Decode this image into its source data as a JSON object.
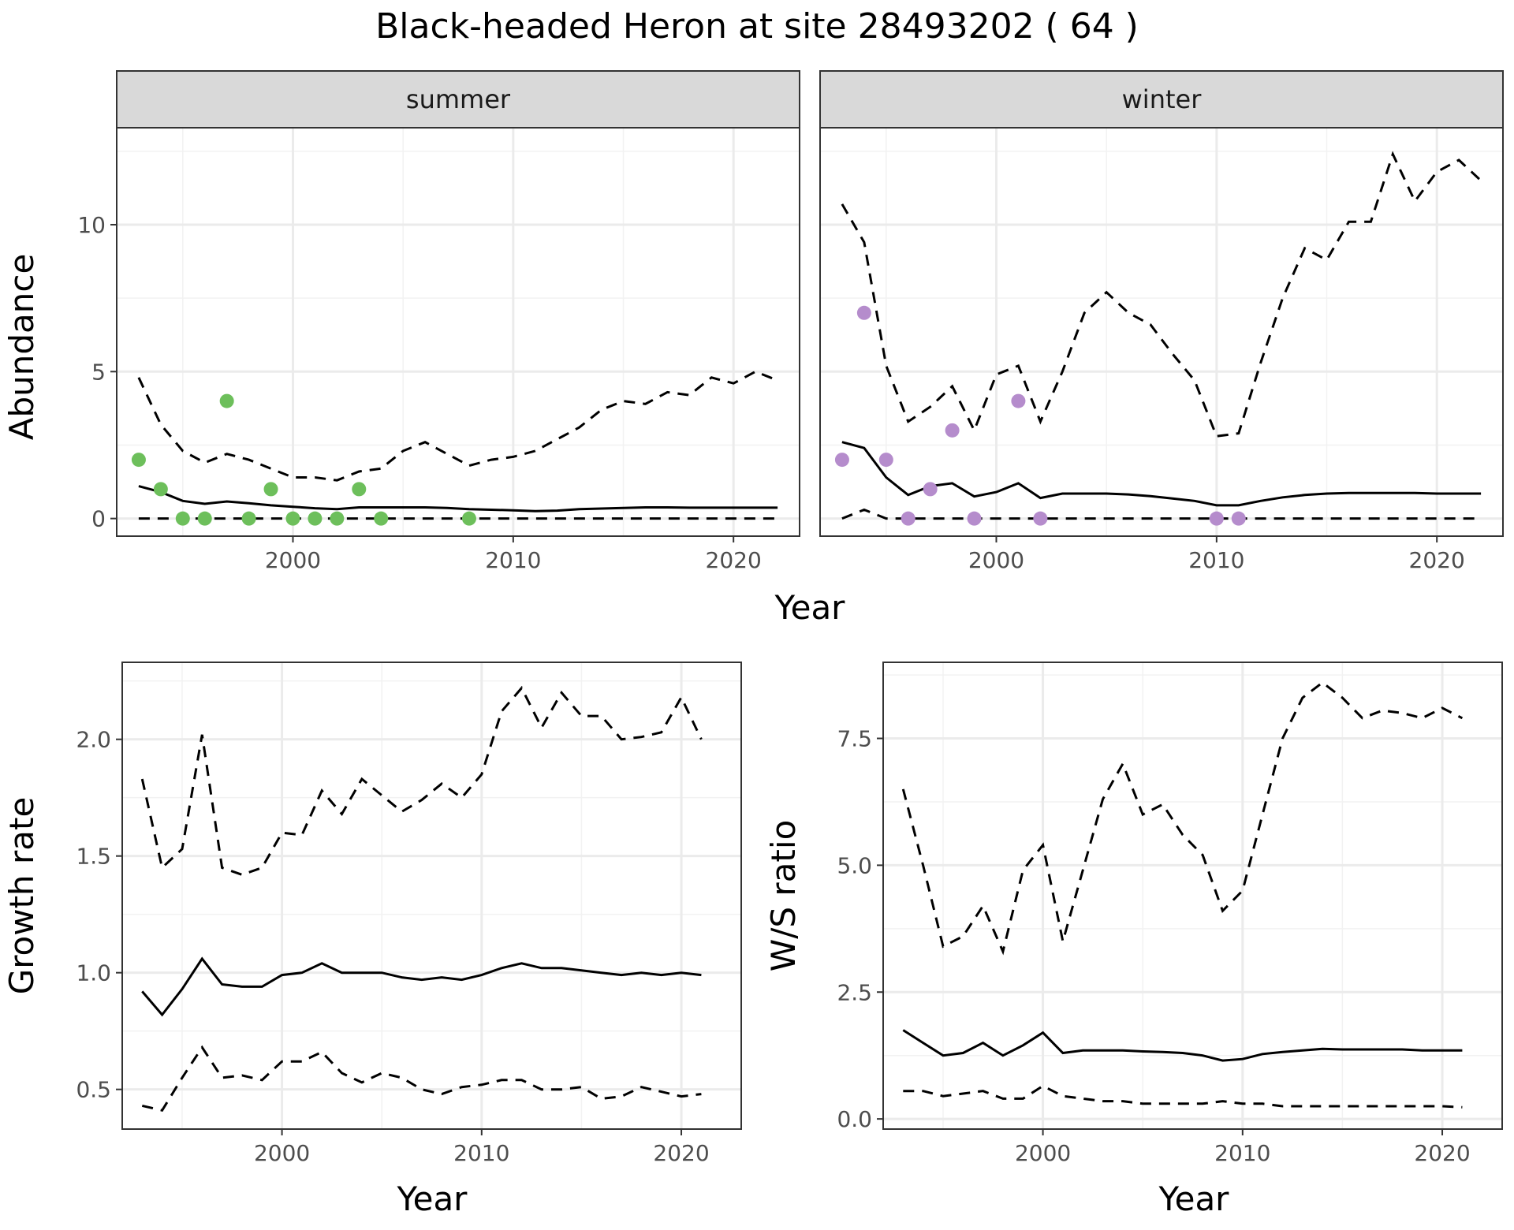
{
  "title": "Black-headed Heron at site 28493202 ( 64 )",
  "colors": {
    "summer_points": "#6dbf5b",
    "winter_points": "#b58ccc",
    "line": "#000000",
    "strip_bg": "#d9d9d9",
    "grid": "#ebebeb"
  },
  "chart_data": [
    {
      "type": "line",
      "panel": "summer",
      "xlabel": "Year",
      "ylabel": "Abundance",
      "xlim": [
        1992,
        2023
      ],
      "ylim": [
        -0.6,
        13.3
      ],
      "xticks": [
        2000,
        2010,
        2020
      ],
      "yticks": [
        0,
        5,
        10
      ],
      "x": [
        1993,
        1994,
        1995,
        1996,
        1997,
        1998,
        1999,
        2000,
        2001,
        2002,
        2003,
        2004,
        2005,
        2006,
        2007,
        2008,
        2009,
        2010,
        2011,
        2012,
        2013,
        2014,
        2015,
        2016,
        2017,
        2018,
        2019,
        2020,
        2021,
        2022
      ],
      "series": [
        {
          "style": "solid",
          "values": [
            1.1,
            0.9,
            0.6,
            0.5,
            0.58,
            0.52,
            0.45,
            0.4,
            0.35,
            0.32,
            0.38,
            0.38,
            0.38,
            0.38,
            0.36,
            0.32,
            0.3,
            0.28,
            0.25,
            0.27,
            0.32,
            0.34,
            0.36,
            0.38,
            0.38,
            0.37,
            0.37,
            0.37,
            0.37,
            0.37
          ]
        },
        {
          "style": "dashed",
          "values": [
            4.8,
            3.2,
            2.3,
            1.9,
            2.2,
            2.0,
            1.7,
            1.4,
            1.4,
            1.3,
            1.6,
            1.7,
            2.3,
            2.6,
            2.2,
            1.8,
            2.0,
            2.1,
            2.3,
            2.7,
            3.1,
            3.7,
            4.0,
            3.9,
            4.3,
            4.2,
            4.8,
            4.6,
            5.0,
            4.7
          ]
        },
        {
          "style": "dashed",
          "values": [
            0,
            0,
            0,
            0,
            0,
            0,
            0,
            0,
            0,
            0,
            0,
            0,
            0,
            0,
            0,
            0,
            0,
            0,
            0,
            0,
            0,
            0,
            0,
            0,
            0,
            0,
            0,
            0,
            0,
            0
          ]
        }
      ],
      "points": {
        "x": [
          1993,
          1994,
          1995,
          1996,
          1997,
          1998,
          1999,
          2000,
          2001,
          2002,
          2003,
          2004,
          2008
        ],
        "y": [
          2,
          1,
          0,
          0,
          4,
          0,
          1,
          0,
          0,
          0,
          1,
          0,
          0
        ]
      }
    },
    {
      "type": "line",
      "panel": "winter",
      "xlabel": "Year",
      "xlim": [
        1992,
        2023
      ],
      "ylim": [
        -0.6,
        13.3
      ],
      "xticks": [
        2000,
        2010,
        2020
      ],
      "yticks": [
        0,
        5,
        10
      ],
      "x": [
        1993,
        1994,
        1995,
        1996,
        1997,
        1998,
        1999,
        2000,
        2001,
        2002,
        2003,
        2004,
        2005,
        2006,
        2007,
        2008,
        2009,
        2010,
        2011,
        2012,
        2013,
        2014,
        2015,
        2016,
        2017,
        2018,
        2019,
        2020,
        2021,
        2022
      ],
      "series": [
        {
          "style": "solid",
          "values": [
            2.6,
            2.4,
            1.4,
            0.8,
            1.1,
            1.2,
            0.75,
            0.9,
            1.2,
            0.7,
            0.85,
            0.85,
            0.85,
            0.82,
            0.76,
            0.68,
            0.6,
            0.45,
            0.45,
            0.6,
            0.72,
            0.8,
            0.85,
            0.87,
            0.87,
            0.87,
            0.87,
            0.85,
            0.85,
            0.85
          ]
        },
        {
          "style": "dashed",
          "values": [
            10.7,
            9.4,
            5.2,
            3.3,
            3.8,
            4.5,
            3.0,
            4.9,
            5.2,
            3.3,
            5.0,
            7.0,
            7.7,
            7.0,
            6.6,
            5.6,
            4.7,
            2.8,
            2.9,
            5.3,
            7.5,
            9.2,
            8.8,
            10.1,
            10.1,
            12.4,
            10.8,
            11.8,
            12.2,
            11.5
          ]
        },
        {
          "style": "dashed",
          "values": [
            0,
            0.3,
            0,
            0,
            0,
            0,
            0,
            0,
            0,
            0,
            0,
            0,
            0,
            0,
            0,
            0,
            0,
            0,
            0,
            0,
            0,
            0,
            0,
            0,
            0,
            0,
            0,
            0,
            0,
            0
          ]
        }
      ],
      "points": {
        "x": [
          1993,
          1994,
          1995,
          1996,
          1997,
          1998,
          1999,
          2001,
          2002,
          2010,
          2011
        ],
        "y": [
          2,
          7,
          2,
          0,
          1,
          3,
          0,
          4,
          0,
          0,
          0
        ]
      }
    },
    {
      "type": "line",
      "panel": "growth",
      "xlabel": "Year",
      "ylabel": "Growth rate",
      "xlim": [
        1992,
        2023
      ],
      "ylim": [
        0.33,
        2.33
      ],
      "xticks": [
        2000,
        2010,
        2020
      ],
      "yticks": [
        0.5,
        1.0,
        1.5,
        2.0
      ],
      "ytick_labels": [
        "0.5",
        "1.0",
        "1.5",
        "2.0"
      ],
      "x": [
        1993,
        1994,
        1995,
        1996,
        1997,
        1998,
        1999,
        2000,
        2001,
        2002,
        2003,
        2004,
        2005,
        2006,
        2007,
        2008,
        2009,
        2010,
        2011,
        2012,
        2013,
        2014,
        2015,
        2016,
        2017,
        2018,
        2019,
        2020,
        2021
      ],
      "series": [
        {
          "style": "solid",
          "values": [
            0.92,
            0.82,
            0.93,
            1.06,
            0.95,
            0.94,
            0.94,
            0.99,
            1.0,
            1.04,
            1.0,
            1.0,
            1.0,
            0.98,
            0.97,
            0.98,
            0.97,
            0.99,
            1.02,
            1.04,
            1.02,
            1.02,
            1.01,
            1.0,
            0.99,
            1.0,
            0.99,
            1.0,
            0.99
          ]
        },
        {
          "style": "dashed",
          "values": [
            1.83,
            1.45,
            1.53,
            2.02,
            1.45,
            1.42,
            1.45,
            1.6,
            1.59,
            1.78,
            1.68,
            1.83,
            1.76,
            1.69,
            1.74,
            1.81,
            1.75,
            1.85,
            2.12,
            2.22,
            2.05,
            2.2,
            2.1,
            2.1,
            2.0,
            2.01,
            2.03,
            2.18,
            2.0
          ]
        },
        {
          "style": "dashed",
          "values": [
            0.43,
            0.41,
            0.55,
            0.68,
            0.55,
            0.56,
            0.54,
            0.62,
            0.62,
            0.66,
            0.57,
            0.53,
            0.57,
            0.55,
            0.5,
            0.48,
            0.51,
            0.52,
            0.54,
            0.54,
            0.5,
            0.5,
            0.51,
            0.46,
            0.47,
            0.51,
            0.49,
            0.47,
            0.48
          ]
        }
      ]
    },
    {
      "type": "line",
      "panel": "ratio",
      "xlabel": "Year",
      "ylabel": "W/S ratio",
      "xlim": [
        1992,
        2023
      ],
      "ylim": [
        -0.2,
        9.0
      ],
      "xticks": [
        2000,
        2010,
        2020
      ],
      "yticks": [
        0.0,
        2.5,
        5.0,
        7.5
      ],
      "ytick_labels": [
        "0.0",
        "2.5",
        "5.0",
        "7.5"
      ],
      "x": [
        1993,
        1994,
        1995,
        1996,
        1997,
        1998,
        1999,
        2000,
        2001,
        2002,
        2003,
        2004,
        2005,
        2006,
        2007,
        2008,
        2009,
        2010,
        2011,
        2012,
        2013,
        2014,
        2015,
        2016,
        2017,
        2018,
        2019,
        2020,
        2021
      ],
      "series": [
        {
          "style": "solid",
          "values": [
            1.75,
            1.5,
            1.25,
            1.3,
            1.5,
            1.25,
            1.45,
            1.7,
            1.3,
            1.35,
            1.35,
            1.35,
            1.33,
            1.32,
            1.3,
            1.25,
            1.15,
            1.18,
            1.28,
            1.32,
            1.35,
            1.38,
            1.37,
            1.37,
            1.37,
            1.37,
            1.35,
            1.35,
            1.35
          ]
        },
        {
          "style": "dashed",
          "values": [
            6.5,
            5.0,
            3.4,
            3.6,
            4.2,
            3.3,
            4.9,
            5.4,
            3.5,
            4.9,
            6.3,
            7.0,
            6.0,
            6.2,
            5.6,
            5.2,
            4.1,
            4.5,
            6.0,
            7.5,
            8.3,
            8.6,
            8.3,
            7.9,
            8.05,
            8.0,
            7.9,
            8.1,
            7.9
          ]
        },
        {
          "style": "dashed",
          "values": [
            0.55,
            0.55,
            0.45,
            0.5,
            0.55,
            0.4,
            0.4,
            0.65,
            0.45,
            0.4,
            0.35,
            0.35,
            0.3,
            0.3,
            0.3,
            0.3,
            0.35,
            0.3,
            0.3,
            0.25,
            0.25,
            0.25,
            0.25,
            0.25,
            0.25,
            0.25,
            0.25,
            0.25,
            0.23
          ]
        }
      ]
    }
  ],
  "strips": {
    "summer": "summer",
    "winter": "winter"
  },
  "axis_titles": {
    "top_x": "Year",
    "top_y": "Abundance",
    "bl_x": "Year",
    "bl_y": "Growth rate",
    "br_x": "Year",
    "br_y": "W/S ratio"
  }
}
